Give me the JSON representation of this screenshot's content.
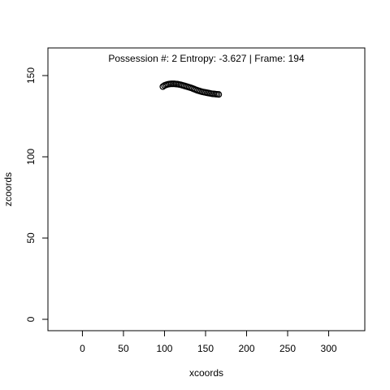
{
  "chart_data": {
    "type": "scatter",
    "title": "Possession #: 2 Entropy: -3.627 | Frame: 194",
    "xlabel": "xcoords",
    "ylabel": "zcoords",
    "xlim": [
      -42,
      344
    ],
    "ylim": [
      -7,
      167
    ],
    "xticks": [
      0,
      50,
      100,
      150,
      200,
      250,
      300
    ],
    "yticks": [
      0,
      50,
      100,
      150
    ],
    "grid": false,
    "legend": "none",
    "marker": "open-circle",
    "marker_color": "#000000",
    "x": [
      98,
      100,
      102,
      104,
      106,
      108,
      110,
      112,
      114,
      116,
      118,
      120,
      122,
      124,
      126,
      128,
      130,
      132,
      134,
      136,
      138,
      140,
      142,
      144,
      146,
      148,
      150,
      152,
      154,
      156,
      158,
      160,
      162,
      164,
      166
    ],
    "y": [
      143.2,
      143.9,
      144.3,
      144.6,
      144.8,
      144.9,
      144.9,
      144.9,
      144.8,
      144.7,
      144.5,
      144.3,
      144.0,
      143.7,
      143.4,
      143.1,
      142.8,
      142.5,
      142.1,
      141.7,
      141.3,
      140.9,
      140.6,
      140.3,
      140.0,
      139.8,
      139.6,
      139.4,
      139.2,
      139.0,
      138.8,
      138.7,
      138.6,
      138.5,
      138.4
    ]
  }
}
